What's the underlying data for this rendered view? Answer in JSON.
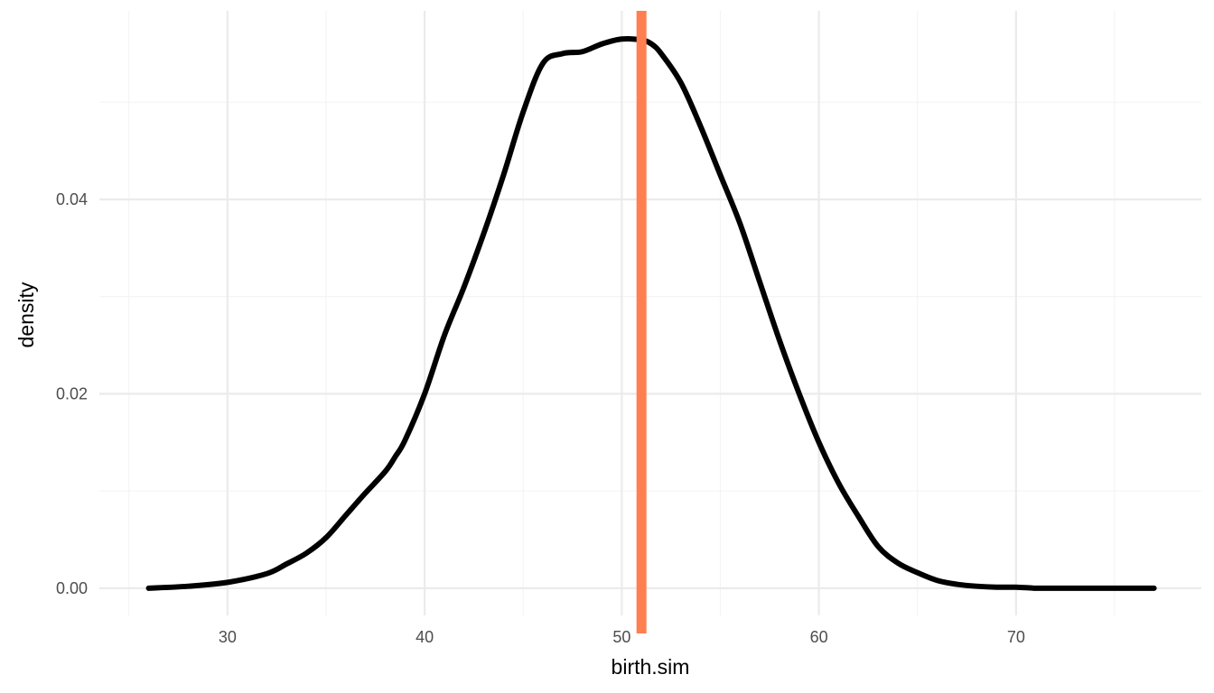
{
  "chart_data": {
    "type": "density",
    "xlabel": "birth.sim",
    "ylabel": "density",
    "xlim": [
      23.5,
      79.4
    ],
    "ylim": [
      -0.0028,
      0.0594
    ],
    "x_ticks": [
      30,
      40,
      50,
      60,
      70
    ],
    "x_tick_labels": [
      "30",
      "40",
      "50",
      "60",
      "70"
    ],
    "x_minor_ticks": [
      25,
      35,
      45,
      55,
      65,
      75
    ],
    "y_ticks": [
      0.0,
      0.02,
      0.04
    ],
    "y_tick_labels": [
      "0.00",
      "0.02",
      "0.04"
    ],
    "y_minor_ticks": [
      0.01,
      0.03,
      0.05
    ],
    "grid": true,
    "series": [
      {
        "x": [
          26.0,
          28.0,
          30.0,
          32.0,
          33.0,
          34.0,
          35.0,
          36.0,
          37.0,
          38.0,
          38.5,
          39.0,
          40.0,
          41.0,
          42.0,
          43.0,
          44.0,
          45.0,
          46.0,
          47.0,
          48.0,
          49.0,
          50.0,
          51.0,
          51.5,
          52.0,
          53.0,
          54.0,
          55.0,
          56.0,
          57.0,
          58.0,
          59.0,
          60.0,
          61.0,
          62.0,
          63.0,
          64.0,
          65.0,
          66.0,
          67.0,
          68.0,
          69.0,
          70.0,
          71.0,
          72.0,
          73.0,
          74.0,
          75.0,
          77.0
        ],
        "y": [
          0.0,
          0.0002,
          0.0006,
          0.0015,
          0.0025,
          0.0036,
          0.0052,
          0.0075,
          0.0098,
          0.012,
          0.0135,
          0.0152,
          0.02,
          0.026,
          0.031,
          0.0365,
          0.0425,
          0.049,
          0.054,
          0.055,
          0.0552,
          0.056,
          0.0565,
          0.0564,
          0.056,
          0.055,
          0.052,
          0.0475,
          0.0425,
          0.0375,
          0.0315,
          0.0255,
          0.02,
          0.015,
          0.0108,
          0.0074,
          0.0043,
          0.0026,
          0.0016,
          0.0008,
          0.0004,
          0.0002,
          0.0001,
          0.0001,
          0.0,
          0.0,
          0.0,
          0.0,
          0.0,
          0.0
        ],
        "color": "#000000"
      }
    ],
    "vline": {
      "x": 51.0,
      "color": "#ff7f50"
    }
  },
  "colors": {
    "background": "#ffffff",
    "grid_major": "#ebebeb",
    "grid_minor": "#f3f3f3",
    "curve": "#000000",
    "vline": "#ff7f50",
    "tick_text": "#4d4d4d",
    "title_text": "#000000"
  }
}
